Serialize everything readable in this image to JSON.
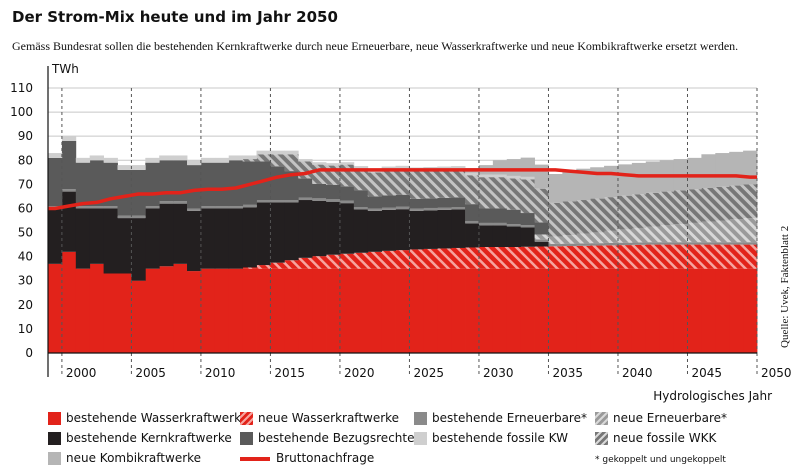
{
  "title": "Der Strom-Mix heute und im Jahr 2050",
  "subtitle": "Gemäss Bundesrat sollen die bestehenden Kernkraftwerke durch neue Erneuerbare, neue Wasserkraftwerke und neue Kombikraftwerke ersetzt werden.",
  "source": "Quelle: Uvek, Faktenblatt 2",
  "footnote": "* gekoppelt und ungekoppelt",
  "chart_data": {
    "type": "area",
    "ylabel": "TWh",
    "xlabel": "Hydrologisches Jahr",
    "ylim": [
      0,
      110
    ],
    "yticks": [
      0,
      10,
      20,
      30,
      40,
      50,
      60,
      70,
      80,
      90,
      100,
      110
    ],
    "xlim": [
      1999,
      2050
    ],
    "xticks": [
      2000,
      2005,
      2010,
      2015,
      2020,
      2025,
      2030,
      2035,
      2040,
      2045,
      2050
    ],
    "grid": "dashed vertical at tick years, solid horizontal",
    "legend_position": "bottom",
    "colors": {
      "bestehende_wasserkraftwerke": "#e2231a",
      "neue_wasserkraftwerke": "#e2231a",
      "bestehende_kernkraftwerke": "#231f20",
      "bestehende_bezugsrechte": "#5a5a5a",
      "bestehende_erneuerbare": "#8a8a8a",
      "neue_erneuerbare": "#9b9b9b",
      "bestehende_fossile_kw": "#cfcfcf",
      "neue_fossile_wkk": "#8f8f8f",
      "neue_kombikraftwerke": "#b5b5b5",
      "bruttonachfrage": "#e2231a"
    },
    "years": [
      1999,
      2000,
      2001,
      2002,
      2003,
      2004,
      2005,
      2006,
      2007,
      2008,
      2009,
      2010,
      2011,
      2012,
      2013,
      2014,
      2015,
      2016,
      2017,
      2018,
      2019,
      2020,
      2021,
      2022,
      2023,
      2024,
      2025,
      2026,
      2027,
      2028,
      2029,
      2030,
      2031,
      2032,
      2033,
      2034,
      2035,
      2036,
      2037,
      2038,
      2039,
      2040,
      2041,
      2042,
      2043,
      2044,
      2045,
      2046,
      2047,
      2048,
      2049
    ],
    "series": [
      {
        "name": "bestehende Wasserkraftwerke",
        "key": "bestehende_wasserkraftwerke",
        "pattern": "solid",
        "values": [
          37,
          42,
          35,
          37,
          33,
          33,
          30,
          35,
          36,
          37,
          34,
          35,
          35,
          35,
          35,
          35,
          35,
          35,
          35,
          35,
          35,
          35,
          35,
          35,
          35,
          35,
          35,
          35,
          35,
          35,
          35,
          35,
          35,
          35,
          35,
          35,
          35,
          35,
          35,
          35,
          35,
          35,
          35,
          35,
          35,
          35,
          35,
          35,
          35,
          35,
          35
        ]
      },
      {
        "name": "neue Wasserkraftwerke",
        "key": "neue_wasserkraftwerke",
        "pattern": "hatched",
        "values": [
          0,
          0,
          0,
          0,
          0,
          0,
          0,
          0,
          0,
          0,
          0,
          0,
          0,
          0,
          0.5,
          1.5,
          2.5,
          3.5,
          4.5,
          5.2,
          5.8,
          6.2,
          6.6,
          7,
          7.4,
          7.7,
          8,
          8.2,
          8.4,
          8.6,
          8.8,
          9,
          9,
          9,
          9.1,
          9.2,
          9.3,
          9.4,
          9.5,
          9.6,
          9.7,
          9.8,
          9.9,
          10,
          10,
          10,
          10,
          10,
          10,
          10,
          10
        ]
      },
      {
        "name": "bestehende Kernkraftwerke",
        "key": "bestehende_kernkraftwerke",
        "pattern": "solid",
        "values": [
          23,
          25,
          25,
          23,
          27,
          23,
          26,
          25,
          26,
          25,
          25,
          25,
          25,
          25,
          25,
          26,
          25,
          24,
          24,
          23,
          22,
          21,
          18,
          17,
          17,
          17,
          16,
          16,
          16,
          16,
          10,
          9,
          9,
          8.5,
          8,
          2,
          0,
          0,
          0,
          0,
          0,
          0,
          0,
          0,
          0,
          0,
          0,
          0,
          0,
          0,
          0
        ]
      },
      {
        "name": "bestehende Erneuerbare*",
        "key": "bestehende_erneuerbare",
        "pattern": "solid",
        "values": [
          1,
          1,
          1,
          1,
          1,
          1,
          1,
          1,
          1,
          1,
          1,
          1,
          1,
          1,
          1,
          1,
          1,
          1,
          1,
          1,
          1,
          1,
          1,
          1,
          1,
          1,
          1,
          1,
          1,
          1,
          1,
          1,
          1,
          1,
          1,
          1,
          1,
          1,
          1,
          1,
          1,
          1,
          1,
          1,
          1,
          1,
          1,
          1,
          1,
          1,
          1
        ]
      },
      {
        "name": "neue Erneuerbare*",
        "key": "neue_erneuerbare",
        "pattern": "hatched",
        "values": [
          0,
          0,
          0,
          0,
          0,
          0,
          0,
          0,
          0,
          0,
          0,
          0,
          0,
          0,
          0,
          0,
          0,
          0,
          0,
          0,
          0,
          0,
          0,
          0,
          0,
          0,
          0,
          0,
          0,
          0,
          0,
          0,
          0,
          0,
          0,
          2,
          3,
          3.5,
          4,
          4.5,
          5,
          5.5,
          6,
          6.5,
          7,
          7.5,
          8,
          8.5,
          9,
          9.5,
          10
        ]
      },
      {
        "name": "bestehende Bezugsrechte",
        "key": "bestehende_bezugsrechte",
        "pattern": "solid",
        "values": [
          20,
          20,
          18,
          19,
          18,
          19,
          19,
          18,
          17,
          17,
          18,
          18,
          18,
          19,
          18,
          16,
          14,
          12,
          8,
          6,
          6,
          6,
          7,
          5,
          5,
          5,
          4,
          4,
          4,
          4,
          7,
          6,
          6,
          6,
          5,
          5,
          0,
          0,
          0,
          0,
          0,
          0,
          0,
          0,
          0,
          0,
          0,
          0,
          0,
          0,
          0
        ]
      },
      {
        "name": "neue fossile WKK",
        "key": "neue_fossile_wkk",
        "pattern": "hatched",
        "values": [
          0,
          0,
          0,
          0,
          0,
          0,
          0,
          0,
          0,
          0,
          0,
          0,
          0,
          0,
          1,
          3,
          5,
          7,
          7,
          8,
          8,
          9,
          9,
          10,
          11,
          11,
          12,
          12,
          12,
          12,
          12,
          13,
          13,
          13,
          14,
          14,
          14,
          14,
          14,
          14,
          14,
          14,
          14,
          14,
          14,
          14,
          14,
          14,
          14,
          14,
          14
        ]
      },
      {
        "name": "bestehende fossile KW",
        "key": "bestehende_fossile_kw",
        "pattern": "solid",
        "values": [
          2,
          2,
          2,
          2,
          2,
          2,
          2,
          2,
          2,
          2,
          2,
          2,
          2,
          2,
          1.5,
          1.5,
          1.5,
          1.5,
          1,
          1,
          1,
          1,
          1,
          1,
          1,
          1,
          1,
          1,
          1,
          1,
          1,
          1,
          1,
          1,
          1,
          0,
          0,
          0,
          0,
          0,
          0,
          0,
          0,
          0,
          0,
          0,
          0,
          0,
          0,
          0,
          0
        ]
      },
      {
        "name": "neue Kombikraftwerke",
        "key": "neue_kombikraftwerke",
        "pattern": "solid",
        "values": [
          0,
          0,
          0,
          0,
          0,
          0,
          0,
          0,
          0,
          0,
          0,
          0,
          0,
          0,
          0,
          0,
          0,
          0,
          0,
          0,
          0,
          0,
          0,
          0,
          0,
          0,
          0,
          0,
          0,
          0,
          2,
          4,
          6,
          7,
          8,
          10,
          12,
          13,
          13,
          13,
          13,
          13,
          13,
          13,
          13,
          13,
          13,
          14,
          14,
          14,
          14
        ]
      },
      {
        "name": "Bruttonachfrage",
        "key": "bruttonachfrage",
        "pattern": "line",
        "values": [
          60,
          61,
          62,
          62.5,
          64,
          65,
          66,
          66,
          66.5,
          66.5,
          67.5,
          68,
          68,
          68.5,
          70,
          71.5,
          73,
          74,
          74.5,
          76,
          76,
          76,
          76,
          76,
          76,
          76,
          76,
          76,
          76,
          76,
          76,
          76,
          76,
          76,
          76,
          76,
          76,
          75.5,
          75,
          74.5,
          74.5,
          74,
          73.5,
          73.5,
          73.5,
          73.5,
          73.5,
          73.5,
          73.5,
          73.5,
          73
        ]
      }
    ]
  },
  "legend": [
    {
      "label": "bestehende Wasserkraftwerke",
      "key": "bestehende_wasserkraftwerke",
      "type": "solid"
    },
    {
      "label": "neue Wasserkraftwerke",
      "key": "neue_wasserkraftwerke",
      "type": "hatched"
    },
    {
      "label": "bestehende Erneuerbare*",
      "key": "bestehende_erneuerbare",
      "type": "solid"
    },
    {
      "label": "neue Erneuerbare*",
      "key": "neue_erneuerbare",
      "type": "hatched"
    },
    {
      "label": "bestehende Kernkraftwerke",
      "key": "bestehende_kernkraftwerke",
      "type": "solid"
    },
    {
      "label": "bestehende Bezugsrechte",
      "key": "bestehende_bezugsrechte",
      "type": "solid"
    },
    {
      "label": "bestehende fossile KW",
      "key": "bestehende_fossile_kw",
      "type": "solid"
    },
    {
      "label": "neue fossile WKK",
      "key": "neue_fossile_wkk",
      "type": "hatched"
    },
    {
      "label": "neue Kombikraftwerke",
      "key": "neue_kombikraftwerke",
      "type": "solid"
    },
    {
      "label": "Bruttonachfrage",
      "key": "bruttonachfrage",
      "type": "line"
    }
  ]
}
